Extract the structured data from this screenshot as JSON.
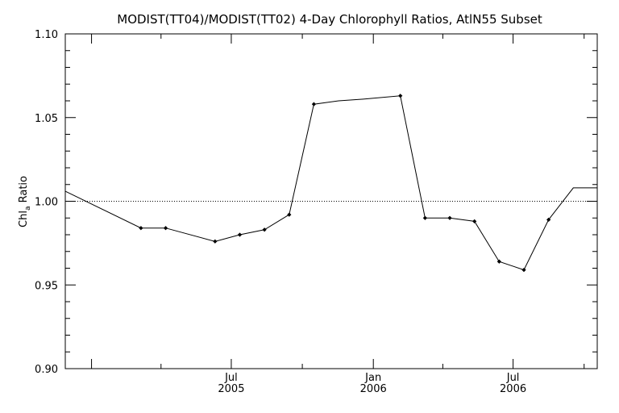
{
  "chart_data": {
    "type": "line",
    "title": "MODIST(TT04)/MODIST(TT02) 4-Day Chlorophyll Ratios, AtlN55 Subset",
    "ylabel": "Chl",
    "ylabel_subscript": "a",
    "ylabel_suffix": " Ratio",
    "xlabel": "",
    "ylim": [
      0.9,
      1.1
    ],
    "xlim": [
      "2004-11-28",
      "2006-10-18"
    ],
    "reference_line": {
      "y": 1.0,
      "style": "dotted"
    },
    "yticks": [
      {
        "value": 0.9,
        "label": "0.90"
      },
      {
        "value": 0.95,
        "label": "0.95"
      },
      {
        "value": 1.0,
        "label": "1.00"
      },
      {
        "value": 1.05,
        "label": "1.05"
      },
      {
        "value": 1.1,
        "label": "1.10"
      }
    ],
    "xticks": [
      {
        "date": "2005-07-01",
        "label": "Jul",
        "year": "2005"
      },
      {
        "date": "2006-01-01",
        "label": "Jan",
        "year": "2006"
      },
      {
        "date": "2006-07-01",
        "label": "Jul",
        "year": "2006"
      }
    ],
    "series": [
      {
        "x": [
          "2004-11-28",
          "2005-03-06",
          "2005-04-07",
          "2005-06-10",
          "2005-07-12",
          "2005-08-13",
          "2005-09-14",
          "2005-10-16",
          "2005-11-17",
          "2005-12-19",
          "2006-02-05",
          "2006-03-09",
          "2006-04-10",
          "2006-05-12",
          "2006-06-13",
          "2006-07-15",
          "2006-08-16",
          "2006-09-17",
          "2006-10-18"
        ],
        "y": [
          1.006,
          0.984,
          0.984,
          0.976,
          0.98,
          0.983,
          0.992,
          1.058,
          1.06,
          1.061,
          1.063,
          0.99,
          0.99,
          0.988,
          0.964,
          0.959,
          0.989,
          1.008,
          1.008
        ],
        "markers": [
          false,
          true,
          true,
          true,
          true,
          true,
          true,
          true,
          false,
          false,
          true,
          true,
          true,
          true,
          true,
          true,
          true,
          false,
          false
        ]
      }
    ]
  }
}
